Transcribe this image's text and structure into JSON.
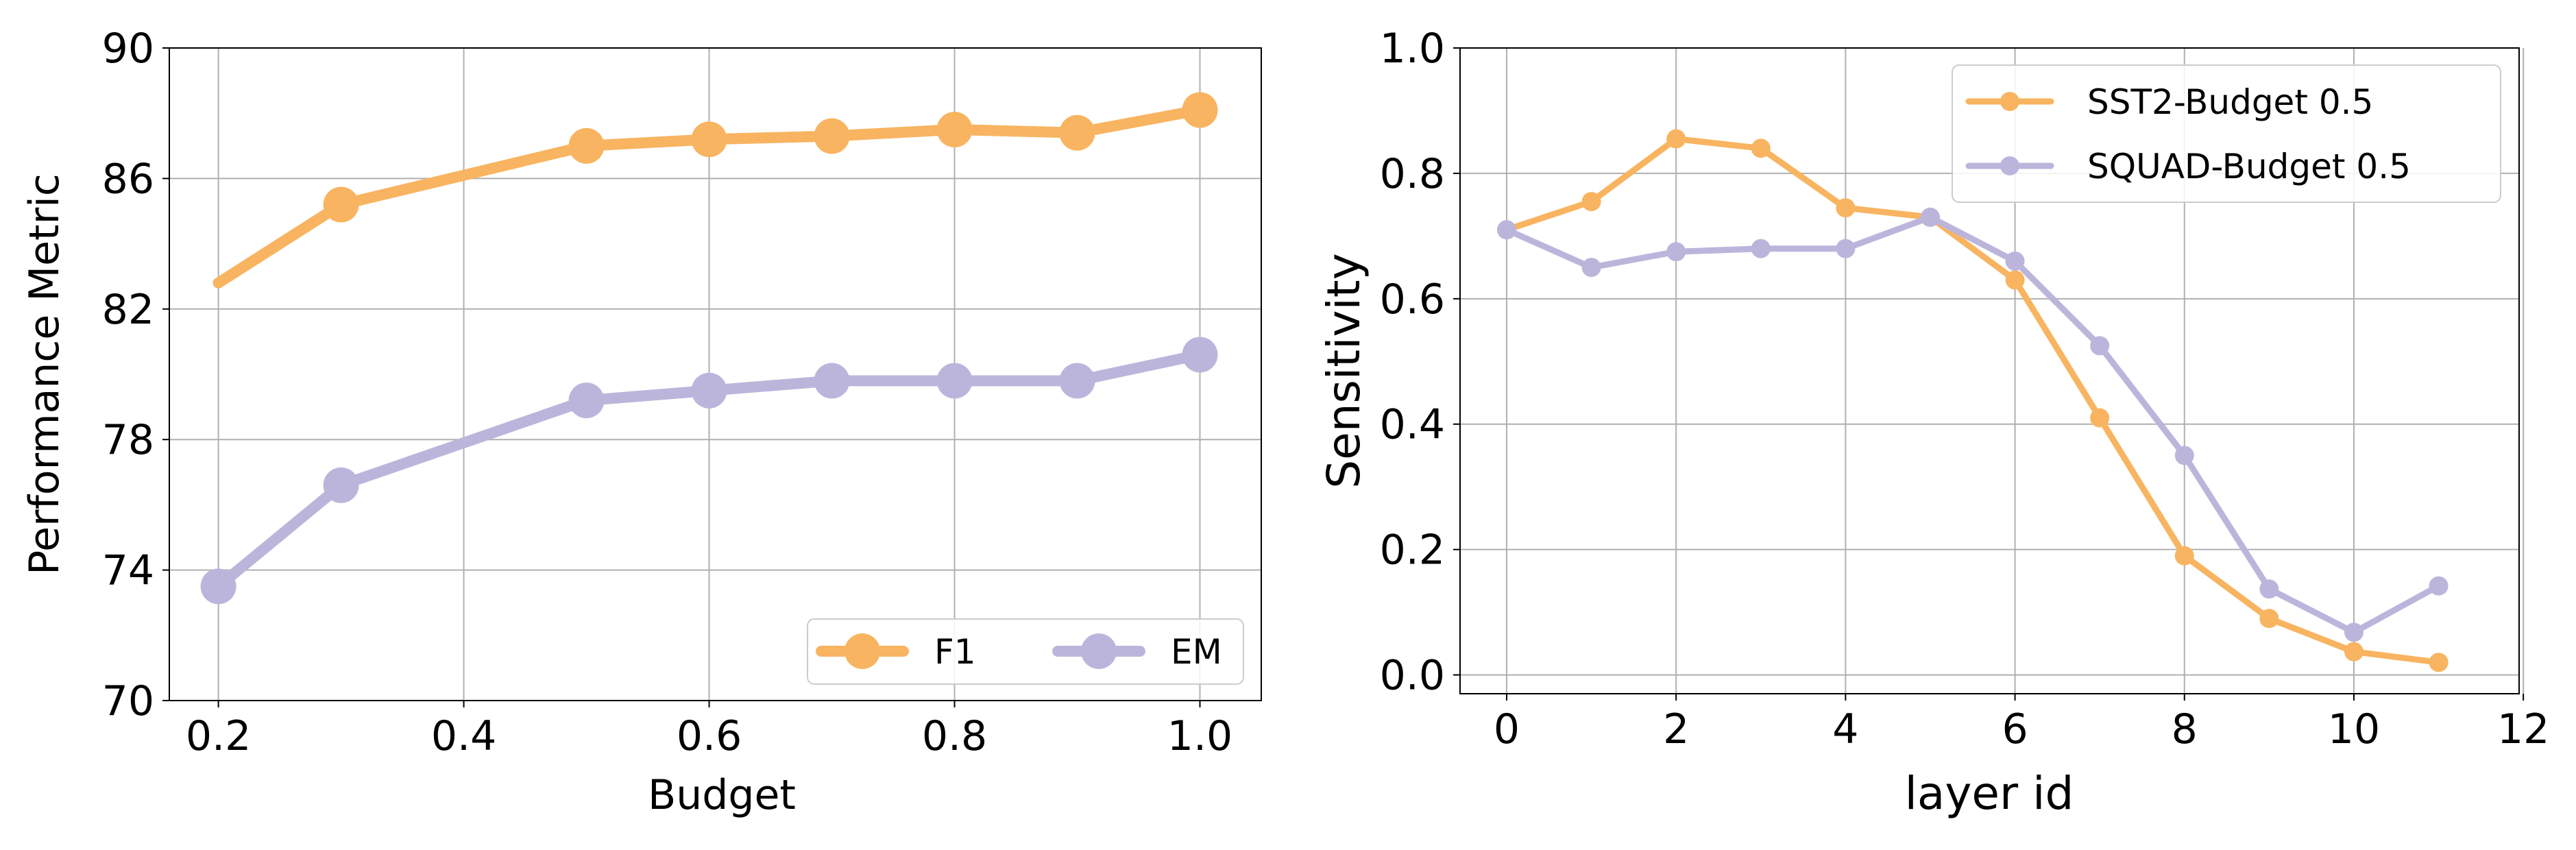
{
  "chart_data": [
    {
      "type": "line",
      "title": "",
      "xlabel": "Budget",
      "ylabel": "Performance Metric",
      "xlim": [
        0.16,
        1.05
      ],
      "ylim": [
        70,
        90
      ],
      "xticks": [
        0.2,
        0.4,
        0.6,
        0.8,
        1.0
      ],
      "xtick_labels": [
        "0.2",
        "0.4",
        "0.6",
        "0.8",
        "1.0"
      ],
      "yticks": [
        70,
        74,
        78,
        82,
        86,
        90
      ],
      "ytick_labels": [
        "70",
        "74",
        "78",
        "82",
        "86",
        "90"
      ],
      "grid": true,
      "legend": "lower-right",
      "series": [
        {
          "name": "F1",
          "color": "#F8B460",
          "marker_at": [
            false,
            true,
            true,
            true,
            true,
            true,
            true,
            true
          ],
          "x": [
            0.2,
            0.3,
            0.5,
            0.6,
            0.7,
            0.8,
            0.9,
            1.0
          ],
          "y": [
            82.8,
            85.2,
            87.0,
            87.2,
            87.3,
            87.5,
            87.4,
            88.1
          ]
        },
        {
          "name": "EM",
          "color": "#BCB5DB",
          "marker_at": [
            true,
            true,
            true,
            true,
            true,
            true,
            true,
            true
          ],
          "x": [
            0.2,
            0.3,
            0.5,
            0.6,
            0.7,
            0.8,
            0.9,
            1.0
          ],
          "y": [
            73.5,
            76.6,
            79.2,
            79.5,
            79.8,
            79.8,
            79.8,
            80.6
          ]
        }
      ]
    },
    {
      "type": "line",
      "title": "",
      "xlabel": "layer id",
      "ylabel": "Sensitivity",
      "xlim": [
        -0.55,
        11.95
      ],
      "ylim": [
        -0.03,
        1.0
      ],
      "xticks": [
        0,
        2,
        4,
        6,
        8,
        10,
        12
      ],
      "xtick_labels": [
        "0",
        "2",
        "4",
        "6",
        "8",
        "10",
        "12"
      ],
      "yticks": [
        0.0,
        0.2,
        0.4,
        0.6,
        0.8,
        1.0
      ],
      "ytick_labels": [
        "0.0",
        "0.2",
        "0.4",
        "0.6",
        "0.8",
        "1.0"
      ],
      "grid": true,
      "legend": "upper-right",
      "series": [
        {
          "name": "SST2-Budget 0.5",
          "color": "#F8B460",
          "x": [
            0,
            1,
            2,
            3,
            4,
            5,
            6,
            7,
            8,
            9,
            10,
            11
          ],
          "y": [
            0.71,
            0.755,
            0.855,
            0.84,
            0.745,
            0.73,
            0.63,
            0.41,
            0.19,
            0.09,
            0.037,
            0.02
          ]
        },
        {
          "name": "SQUAD-Budget 0.5",
          "color": "#BCB5DB",
          "x": [
            0,
            1,
            2,
            3,
            4,
            5,
            6,
            7,
            8,
            9,
            10,
            11
          ],
          "y": [
            0.71,
            0.65,
            0.675,
            0.68,
            0.68,
            0.73,
            0.66,
            0.525,
            0.35,
            0.137,
            0.068,
            0.142
          ]
        }
      ]
    }
  ]
}
